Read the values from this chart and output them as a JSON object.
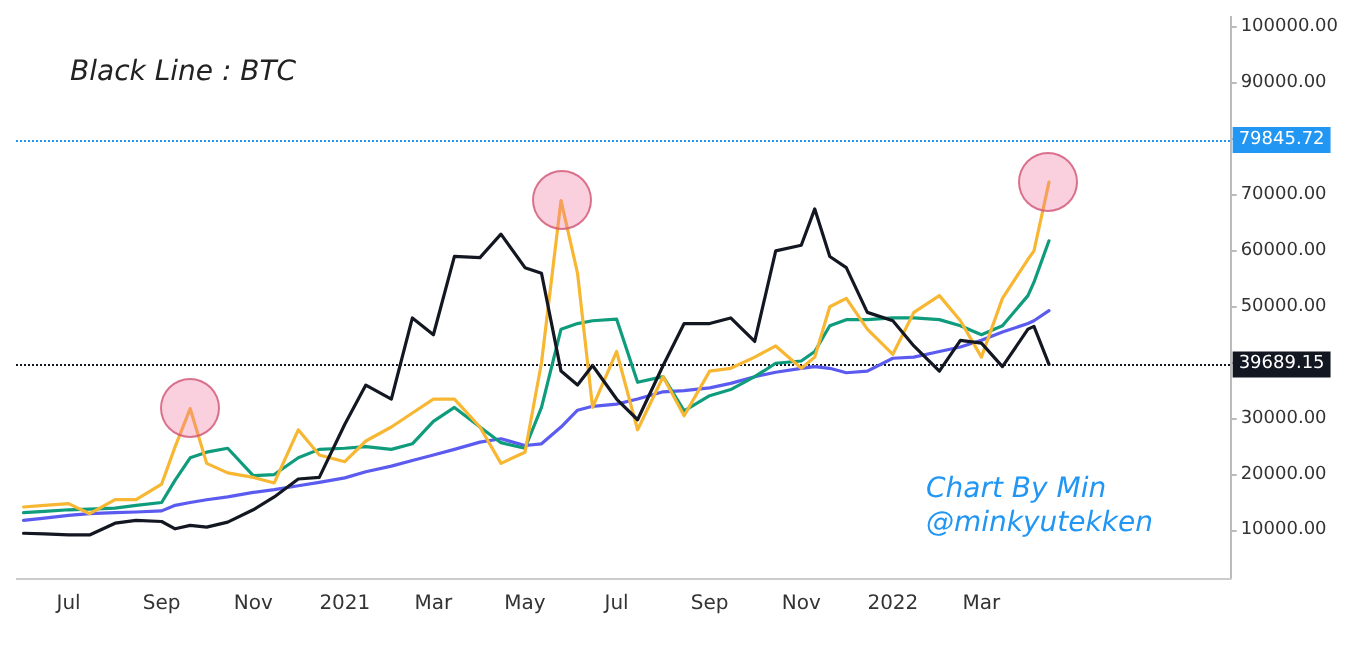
{
  "chart_data": {
    "type": "line",
    "title": "Black Line : BTC",
    "x": [
      "2020-06-01",
      "2020-06-15",
      "2020-07-01",
      "2020-07-15",
      "2020-08-01",
      "2020-08-15",
      "2020-09-01",
      "2020-09-10",
      "2020-09-20",
      "2020-10-01",
      "2020-10-15",
      "2020-11-01",
      "2020-11-15",
      "2020-12-01",
      "2020-12-15",
      "2021-01-01",
      "2021-01-15",
      "2021-02-01",
      "2021-02-15",
      "2021-03-01",
      "2021-03-15",
      "2021-04-01",
      "2021-04-15",
      "2021-05-01",
      "2021-05-12",
      "2021-05-25",
      "2021-06-05",
      "2021-06-15",
      "2021-07-01",
      "2021-07-15",
      "2021-08-01",
      "2021-08-15",
      "2021-09-01",
      "2021-09-15",
      "2021-10-01",
      "2021-10-15",
      "2021-11-01",
      "2021-11-10",
      "2021-11-20",
      "2021-12-01",
      "2021-12-15",
      "2022-01-01",
      "2022-01-15",
      "2022-02-01",
      "2022-02-15",
      "2022-03-01",
      "2022-03-15",
      "2022-04-01",
      "2022-04-05",
      "2022-04-15"
    ],
    "series": [
      {
        "color": "#131722",
        "values": [
          9500,
          9400,
          9200,
          9200,
          11300,
          11800,
          11600,
          10300,
          10900,
          10600,
          11500,
          13700,
          16000,
          19200,
          19500,
          29000,
          36000,
          33500,
          48000,
          45000,
          59000,
          58800,
          63000,
          57000,
          56000,
          38500,
          36000,
          39500,
          33500,
          29800,
          39500,
          47000,
          47000,
          48000,
          43800,
          60000,
          61000,
          67500,
          59000,
          57000,
          49000,
          47500,
          43000,
          38500,
          44000,
          43500,
          39300,
          46000,
          46500,
          39700
        ]
      },
      {
        "color": "#f7b733",
        "values": [
          14200,
          14500,
          14800,
          13000,
          15500,
          15500,
          18300,
          25000,
          31800,
          22000,
          20300,
          19500,
          18500,
          28000,
          23500,
          22300,
          26000,
          28500,
          31000,
          33500,
          33500,
          28500,
          22000,
          24000,
          40000,
          69000,
          56000,
          32000,
          42000,
          28000,
          37500,
          30500,
          38500,
          39000,
          41000,
          43000,
          39000,
          41000,
          50000,
          51500,
          46000,
          41500,
          49000,
          52000,
          47500,
          41000,
          51500,
          58500,
          60000,
          72300
        ]
      },
      {
        "color": "#0e9c7c",
        "values": [
          13200,
          13400,
          13700,
          13800,
          14000,
          14500,
          15000,
          19000,
          23000,
          24000,
          24700,
          19800,
          20000,
          23000,
          24500,
          24700,
          25000,
          24500,
          25500,
          29500,
          32000,
          28500,
          25700,
          24700,
          32000,
          46000,
          47000,
          47500,
          47800,
          36500,
          37500,
          31400,
          34100,
          35200,
          37500,
          39900,
          40300,
          42000,
          46600,
          47700,
          47700,
          48000,
          48000,
          47700,
          46600,
          45000,
          46600,
          52000,
          54400,
          61800
        ]
      },
      {
        "color": "#5b5bf0",
        "values": [
          11800,
          12200,
          12700,
          13000,
          13200,
          13300,
          13500,
          14500,
          15000,
          15500,
          16000,
          16800,
          17300,
          18000,
          18600,
          19400,
          20500,
          21500,
          22500,
          23500,
          24500,
          25800,
          26400,
          25200,
          25500,
          28500,
          31500,
          32200,
          32600,
          33500,
          34800,
          35000,
          35500,
          36300,
          37500,
          38300,
          39000,
          39300,
          39000,
          38200,
          38500,
          40800,
          41000,
          42000,
          42800,
          44000,
          45500,
          47000,
          47500,
          49300
        ]
      }
    ],
    "xlim": [
      "2020-05-27",
      "2022-08-14"
    ],
    "xticks": [
      {
        "value": "2020-07-01",
        "label": "Jul"
      },
      {
        "value": "2020-09-01",
        "label": "Sep"
      },
      {
        "value": "2020-11-01",
        "label": "Nov"
      },
      {
        "value": "2021-01-01",
        "label": "2021"
      },
      {
        "value": "2021-03-01",
        "label": "Mar"
      },
      {
        "value": "2021-05-01",
        "label": "May"
      },
      {
        "value": "2021-07-01",
        "label": "Jul"
      },
      {
        "value": "2021-09-01",
        "label": "Sep"
      },
      {
        "value": "2021-11-01",
        "label": "Nov"
      },
      {
        "value": "2022-01-01",
        "label": "2022"
      },
      {
        "value": "2022-03-01",
        "label": "Mar"
      }
    ],
    "ylim": [
      1500,
      102000
    ],
    "yticks": [
      {
        "value": 10000,
        "label": "10000.00"
      },
      {
        "value": 20000,
        "label": "20000.00"
      },
      {
        "value": 30000,
        "label": "30000.00"
      },
      {
        "value": 40000,
        "label": null
      },
      {
        "value": 50000,
        "label": "50000.00"
      },
      {
        "value": 60000,
        "label": "60000.00"
      },
      {
        "value": 70000,
        "label": "70000.00"
      },
      {
        "value": 80000,
        "label": null
      },
      {
        "value": 90000,
        "label": "90000.00"
      },
      {
        "value": 100000,
        "label": "100000.00"
      }
    ],
    "ref_lines": [
      {
        "axis": "y",
        "value": 79845.72,
        "label": "79845.72",
        "color": "#2196f3",
        "line_style": "dotted"
      },
      {
        "axis": "y",
        "value": 39689.15,
        "label": "39689.15",
        "color": "#131722",
        "line_style": "dotted"
      }
    ],
    "annotations": [
      "Chart By Min\n@minkyutekken"
    ],
    "grid": false,
    "marker": "none",
    "line_style": "solid"
  }
}
